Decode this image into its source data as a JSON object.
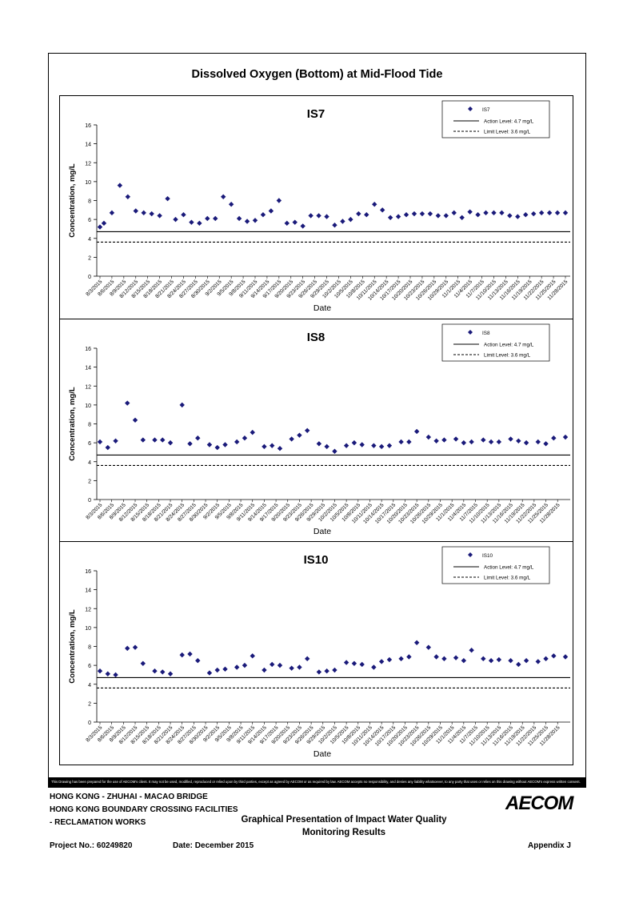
{
  "title": "Dissolved Oxygen (Bottom) at Mid-Flood Tide",
  "xlabel": "Date",
  "ylabel": "Concentration, mg/L",
  "legend": {
    "action": "Action Level: 4.7 mg/L",
    "limit": "Limit Level: 3.6 mg/L"
  },
  "disclaimer": "This Drawing has been prepared for the use of AECOM's client. It may not be used, modified, reproduced or relied upon by third parties, except as agreed by AECOM or as required by law. AECOM accepts no responsibility, and denies any liability whatsoever, to any party that uses or relies on this drawing without AECOM's express written consent.",
  "footer": {
    "line1": "HONG KONG - ZHUHAI - MACAO BRIDGE",
    "line2": "HONG KONG BOUNDARY CROSSING FACILITIES",
    "line3": "- RECLAMATION WORKS",
    "center1": "Graphical Presentation of Impact Water Quality",
    "center2": "Monitoring Results",
    "project": "Project No.: 60249820",
    "date": "Date: December 2015",
    "appendix": "Appendix J",
    "logo": "AECOM"
  },
  "chart_data": [
    {
      "type": "scatter",
      "title": "IS7",
      "xlabel": "Date",
      "ylabel": "Concentration, mg/L",
      "ylim": [
        0,
        16
      ],
      "yticks": [
        0,
        2,
        4,
        6,
        8,
        10,
        12,
        14,
        16
      ],
      "xticks": [
        "8/3/2015",
        "8/6/2015",
        "8/9/2015",
        "8/12/2015",
        "8/15/2015",
        "8/18/2015",
        "8/21/2015",
        "8/24/2015",
        "8/27/2015",
        "8/30/2015",
        "9/2/2015",
        "9/5/2015",
        "9/8/2015",
        "9/11/2015",
        "9/14/2015",
        "9/17/2015",
        "9/20/2015",
        "9/23/2015",
        "9/26/2015",
        "9/29/2015",
        "10/2/2015",
        "10/5/2015",
        "10/8/2015",
        "10/11/2015",
        "10/14/2015",
        "10/17/2015",
        "10/20/2015",
        "10/23/2015",
        "10/26/2015",
        "10/29/2015",
        "11/1/2015",
        "11/4/2015",
        "11/7/2015",
        "11/10/2015",
        "11/13/2015",
        "11/16/2015",
        "11/19/2015",
        "11/22/2015",
        "11/25/2015",
        "11/28/2015"
      ],
      "series": [
        {
          "name": "IS7",
          "marker": "diamond",
          "color": "#1a1a7a",
          "x": [
            "8/3/2015",
            "8/4/2015",
            "8/6/2015",
            "8/8/2015",
            "8/10/2015",
            "8/12/2015",
            "8/14/2015",
            "8/16/2015",
            "8/18/2015",
            "8/20/2015",
            "8/22/2015",
            "8/24/2015",
            "8/26/2015",
            "8/28/2015",
            "8/30/2015",
            "9/1/2015",
            "9/3/2015",
            "9/5/2015",
            "9/7/2015",
            "9/9/2015",
            "9/11/2015",
            "9/13/2015",
            "9/15/2015",
            "9/17/2015",
            "9/19/2015",
            "9/21/2015",
            "9/23/2015",
            "9/25/2015",
            "9/27/2015",
            "9/29/2015",
            "10/1/2015",
            "10/3/2015",
            "10/5/2015",
            "10/7/2015",
            "10/9/2015",
            "10/11/2015",
            "10/13/2015",
            "10/15/2015",
            "10/17/2015",
            "10/19/2015",
            "10/21/2015",
            "10/23/2015",
            "10/25/2015",
            "10/27/2015",
            "10/29/2015",
            "10/31/2015",
            "11/2/2015",
            "11/4/2015",
            "11/6/2015",
            "11/8/2015",
            "11/10/2015",
            "11/12/2015",
            "11/14/2015",
            "11/16/2015",
            "11/18/2015",
            "11/20/2015",
            "11/22/2015",
            "11/24/2015",
            "11/26/2015",
            "11/28/2015"
          ],
          "y": [
            5.2,
            5.6,
            6.7,
            9.6,
            8.4,
            6.9,
            6.7,
            6.6,
            6.4,
            8.2,
            6.0,
            6.5,
            5.7,
            5.6,
            6.1,
            6.1,
            8.4,
            7.6,
            6.1,
            5.8,
            5.9,
            6.5,
            6.9,
            8.0,
            5.6,
            5.7,
            5.3,
            6.4,
            6.4,
            6.3,
            5.4,
            5.8,
            6.0,
            6.6,
            6.5,
            7.6,
            7.0,
            6.2,
            6.3,
            6.5,
            6.6,
            6.6,
            6.6,
            6.4,
            6.4,
            6.7,
            6.2,
            6.8,
            6.5,
            6.7,
            6.7,
            6.7,
            6.4,
            6.3,
            6.5,
            6.6,
            6.7,
            6.7,
            6.7,
            6.7
          ]
        },
        {
          "name": "Action Level: 4.7 mg/L",
          "style": "solid",
          "value": 4.7
        },
        {
          "name": "Limit Level: 3.6 mg/L",
          "style": "dashed",
          "value": 3.6
        }
      ],
      "legend": "top-right"
    },
    {
      "type": "scatter",
      "title": "IS8",
      "xlabel": "Date",
      "ylabel": "Concentration, mg/L",
      "ylim": [
        0,
        16
      ],
      "yticks": [
        0,
        2,
        4,
        6,
        8,
        10,
        12,
        14,
        16
      ],
      "xticks": [
        "8/3/2015",
        "8/6/2015",
        "8/9/2015",
        "8/12/2015",
        "8/15/2015",
        "8/18/2015",
        "8/21/2015",
        "8/24/2015",
        "8/27/2015",
        "8/30/2015",
        "9/2/2015",
        "9/5/2015",
        "9/8/2015",
        "9/11/2015",
        "9/14/2015",
        "9/17/2015",
        "9/20/2015",
        "9/23/2015",
        "9/26/2015",
        "9/29/2015",
        "10/2/2015",
        "10/5/2015",
        "10/8/2015",
        "10/11/2015",
        "10/14/2015",
        "10/17/2015",
        "10/20/2015",
        "10/23/2015",
        "10/26/2015",
        "10/29/2015",
        "11/1/2015",
        "11/4/2015",
        "11/7/2015",
        "11/10/2015",
        "11/13/2015",
        "11/16/2015",
        "11/19/2015",
        "11/22/2015",
        "11/25/2015",
        "11/28/2015"
      ],
      "series": [
        {
          "name": "IS8",
          "marker": "diamond",
          "color": "#1a1a7a",
          "x": [
            "8/3/2015",
            "8/5/2015",
            "8/7/2015",
            "8/10/2015",
            "8/12/2015",
            "8/14/2015",
            "8/17/2015",
            "8/19/2015",
            "8/21/2015",
            "8/24/2015",
            "8/26/2015",
            "8/28/2015",
            "8/31/2015",
            "9/2/2015",
            "9/4/2015",
            "9/7/2015",
            "9/9/2015",
            "9/11/2015",
            "9/14/2015",
            "9/16/2015",
            "9/18/2015",
            "9/21/2015",
            "9/23/2015",
            "9/25/2015",
            "9/28/2015",
            "9/30/2015",
            "10/2/2015",
            "10/5/2015",
            "10/7/2015",
            "10/9/2015",
            "10/12/2015",
            "10/14/2015",
            "10/16/2015",
            "10/19/2015",
            "10/21/2015",
            "10/23/2015",
            "10/26/2015",
            "10/28/2015",
            "10/30/2015",
            "11/2/2015",
            "11/4/2015",
            "11/6/2015",
            "11/9/2015",
            "11/11/2015",
            "11/13/2015",
            "11/16/2015",
            "11/18/2015",
            "11/20/2015",
            "11/23/2015",
            "11/25/2015",
            "11/27/2015",
            "11/30/2015"
          ],
          "y": [
            6.1,
            5.5,
            6.2,
            10.2,
            8.4,
            6.3,
            6.3,
            6.3,
            6.0,
            10.0,
            5.9,
            6.5,
            5.8,
            5.5,
            5.8,
            6.1,
            6.5,
            7.1,
            5.6,
            5.7,
            5.4,
            6.4,
            6.8,
            7.3,
            5.9,
            5.6,
            5.1,
            5.7,
            6.0,
            5.8,
            5.7,
            5.6,
            5.7,
            6.1,
            6.1,
            7.2,
            6.6,
            6.2,
            6.3,
            6.4,
            6.0,
            6.1,
            6.3,
            6.1,
            6.1,
            6.4,
            6.2,
            6.0,
            6.1,
            5.9,
            6.5,
            6.6
          ]
        },
        {
          "name": "Action Level: 4.7 mg/L",
          "style": "solid",
          "value": 4.7
        },
        {
          "name": "Limit Level: 3.6 mg/L",
          "style": "dashed",
          "value": 3.6
        }
      ],
      "legend": "top-right"
    },
    {
      "type": "scatter",
      "title": "IS10",
      "xlabel": "Date",
      "ylabel": "Concentration, mg/L",
      "ylim": [
        0,
        16
      ],
      "yticks": [
        0,
        2,
        4,
        6,
        8,
        10,
        12,
        14,
        16
      ],
      "xticks": [
        "8/3/2015",
        "8/6/2015",
        "8/9/2015",
        "8/12/2015",
        "8/15/2015",
        "8/18/2015",
        "8/21/2015",
        "8/24/2015",
        "8/27/2015",
        "8/30/2015",
        "9/2/2015",
        "9/5/2015",
        "9/8/2015",
        "9/11/2015",
        "9/14/2015",
        "9/17/2015",
        "9/20/2015",
        "9/23/2015",
        "9/26/2015",
        "9/29/2015",
        "10/2/2015",
        "10/5/2015",
        "10/8/2015",
        "10/11/2015",
        "10/14/2015",
        "10/17/2015",
        "10/20/2015",
        "10/23/2015",
        "10/26/2015",
        "10/29/2015",
        "11/1/2015",
        "11/4/2015",
        "11/7/2015",
        "11/10/2015",
        "11/13/2015",
        "11/16/2015",
        "11/19/2015",
        "11/22/2015",
        "11/25/2015",
        "11/28/2015"
      ],
      "series": [
        {
          "name": "IS10",
          "marker": "diamond",
          "color": "#1a1a7a",
          "x": [
            "8/3/2015",
            "8/5/2015",
            "8/7/2015",
            "8/10/2015",
            "8/12/2015",
            "8/14/2015",
            "8/17/2015",
            "8/19/2015",
            "8/21/2015",
            "8/24/2015",
            "8/26/2015",
            "8/28/2015",
            "8/31/2015",
            "9/2/2015",
            "9/4/2015",
            "9/7/2015",
            "9/9/2015",
            "9/11/2015",
            "9/14/2015",
            "9/16/2015",
            "9/18/2015",
            "9/21/2015",
            "9/23/2015",
            "9/25/2015",
            "9/28/2015",
            "9/30/2015",
            "10/2/2015",
            "10/5/2015",
            "10/7/2015",
            "10/9/2015",
            "10/12/2015",
            "10/14/2015",
            "10/16/2015",
            "10/19/2015",
            "10/21/2015",
            "10/23/2015",
            "10/26/2015",
            "10/28/2015",
            "10/30/2015",
            "11/2/2015",
            "11/4/2015",
            "11/6/2015",
            "11/9/2015",
            "11/11/2015",
            "11/13/2015",
            "11/16/2015",
            "11/18/2015",
            "11/20/2015",
            "11/23/2015",
            "11/25/2015",
            "11/27/2015",
            "11/30/2015"
          ],
          "y": [
            5.4,
            5.1,
            5.0,
            7.8,
            7.9,
            6.2,
            5.4,
            5.3,
            5.1,
            7.1,
            7.2,
            6.5,
            5.2,
            5.5,
            5.6,
            5.8,
            6.0,
            7.0,
            5.5,
            6.1,
            6.0,
            5.7,
            5.8,
            6.7,
            5.3,
            5.4,
            5.5,
            6.3,
            6.2,
            6.1,
            5.8,
            6.4,
            6.6,
            6.7,
            6.9,
            8.4,
            7.9,
            6.9,
            6.7,
            6.8,
            6.5,
            7.6,
            6.7,
            6.5,
            6.6,
            6.5,
            6.1,
            6.5,
            6.4,
            6.7,
            7.0,
            6.9
          ]
        },
        {
          "name": "Action Level: 4.7 mg/L",
          "style": "solid",
          "value": 4.7
        },
        {
          "name": "Limit Level: 3.6 mg/L",
          "style": "dashed",
          "value": 3.6
        }
      ],
      "legend": "top-right"
    }
  ]
}
